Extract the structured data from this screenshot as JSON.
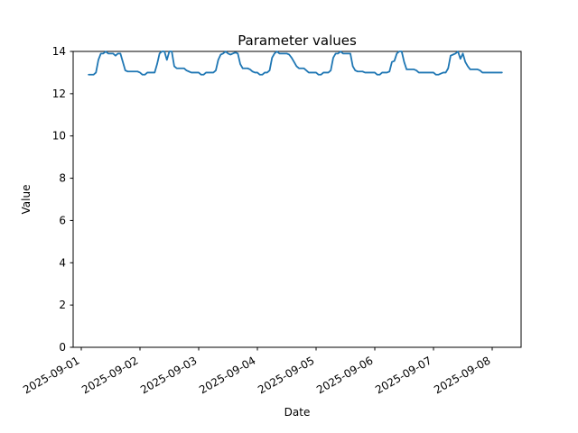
{
  "figure": {
    "background": "#ffffff"
  },
  "chart_data": {
    "type": "line",
    "title": "Parameter values",
    "xlabel": "Date",
    "ylabel": "Value",
    "x_tick_labels": [
      "2025-09-01",
      "2025-09-02",
      "2025-09-03",
      "2025-09-04",
      "2025-09-05",
      "2025-09-06",
      "2025-09-07",
      "2025-09-08"
    ],
    "y_ticks": [
      0,
      2,
      4,
      6,
      8,
      10,
      12,
      14
    ],
    "ylim": [
      0,
      14
    ],
    "grid": false,
    "legend": null,
    "line_color": "#1f77b4",
    "axis_color": "#000000",
    "series": [
      {
        "start_tick_label": "2025-09-01",
        "start_hour_offset": 3,
        "interval_hours": 1,
        "values": [
          12.9,
          12.9,
          12.9,
          13.0,
          13.6,
          13.9,
          13.9,
          14.0,
          13.9,
          13.9,
          13.9,
          13.8,
          13.9,
          13.9,
          13.5,
          13.1,
          13.05,
          13.05,
          13.05,
          13.05,
          13.05,
          13.0,
          12.9,
          12.9,
          13.0,
          13.0,
          13.0,
          13.0,
          13.4,
          13.9,
          14.0,
          14.0,
          13.6,
          14.0,
          14.0,
          13.3,
          13.2,
          13.2,
          13.2,
          13.2,
          13.1,
          13.05,
          13.0,
          13.0,
          13.0,
          13.0,
          12.9,
          12.9,
          13.0,
          13.0,
          13.0,
          13.0,
          13.1,
          13.6,
          13.85,
          13.9,
          14.0,
          13.9,
          13.85,
          13.9,
          13.95,
          13.9,
          13.4,
          13.2,
          13.2,
          13.2,
          13.15,
          13.05,
          13.0,
          13.0,
          12.9,
          12.9,
          13.0,
          13.0,
          13.1,
          13.7,
          13.9,
          14.0,
          13.9,
          13.9,
          13.9,
          13.9,
          13.85,
          13.7,
          13.5,
          13.3,
          13.2,
          13.2,
          13.2,
          13.1,
          13.0,
          13.0,
          13.0,
          13.0,
          12.9,
          12.9,
          13.0,
          13.0,
          13.0,
          13.1,
          13.7,
          13.9,
          13.9,
          14.0,
          13.9,
          13.9,
          13.9,
          13.9,
          13.3,
          13.1,
          13.05,
          13.05,
          13.05,
          13.0,
          13.0,
          13.0,
          13.0,
          13.0,
          12.9,
          12.9,
          13.0,
          13.0,
          13.0,
          13.05,
          13.5,
          13.55,
          13.9,
          14.0,
          14.0,
          13.5,
          13.15,
          13.15,
          13.15,
          13.15,
          13.1,
          13.0,
          13.0,
          13.0,
          13.0,
          13.0,
          13.0,
          13.0,
          12.9,
          12.9,
          12.95,
          13.0,
          13.0,
          13.2,
          13.8,
          13.85,
          13.9,
          14.0,
          13.65,
          13.9,
          13.5,
          13.3,
          13.15,
          13.15,
          13.15,
          13.15,
          13.1,
          13.0,
          13.0,
          13.0,
          13.0,
          13.0,
          13.0,
          13.0,
          13.0,
          13.0
        ]
      }
    ]
  }
}
